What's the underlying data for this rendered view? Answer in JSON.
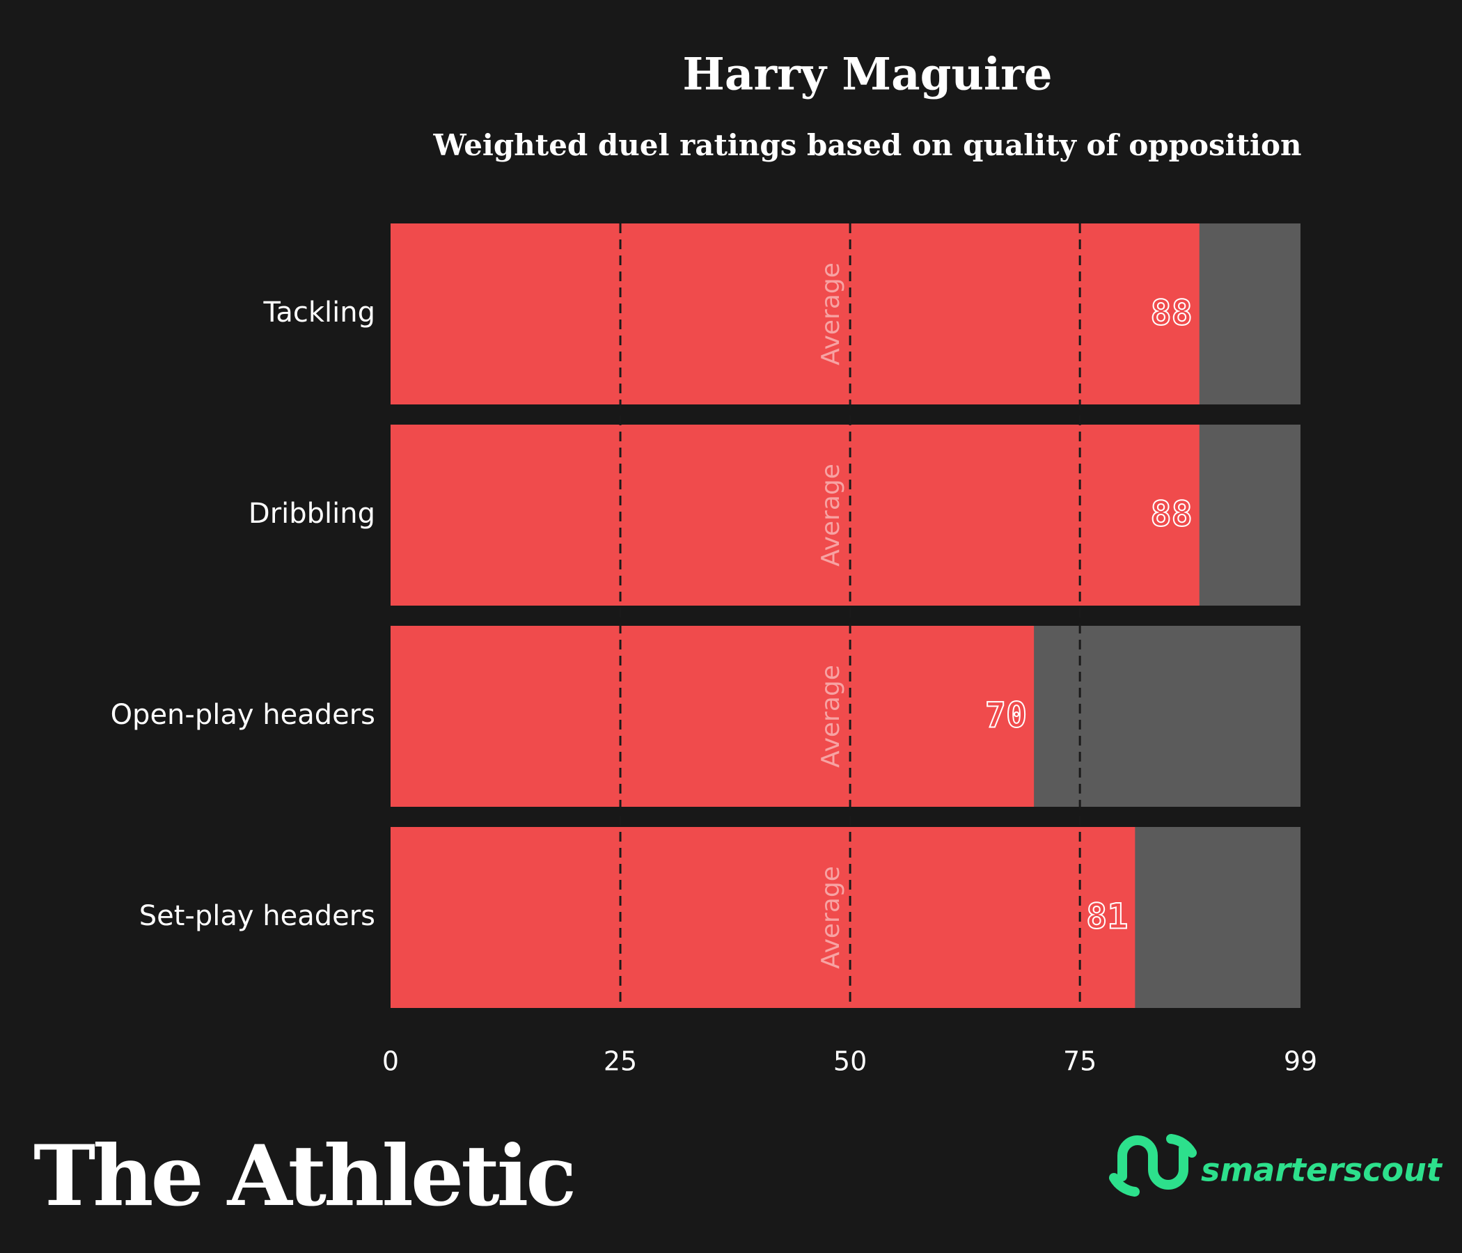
{
  "chart_data": {
    "type": "bar",
    "orientation": "horizontal",
    "title": "Harry Maguire",
    "subtitle": "Weighted duel ratings based on quality of opposition",
    "categories": [
      "Tackling",
      "Dribbling",
      "Open-play headers",
      "Set-play headers"
    ],
    "values": [
      88,
      88,
      70,
      81
    ],
    "color": "#f04b4c",
    "track_color": "#5b5b5b",
    "xlim": [
      0,
      99
    ],
    "xticks": [
      0,
      25,
      50,
      75,
      99
    ],
    "grid": true,
    "annotation": "Average",
    "publisher": "The Athletic",
    "source": "smarterscout"
  }
}
